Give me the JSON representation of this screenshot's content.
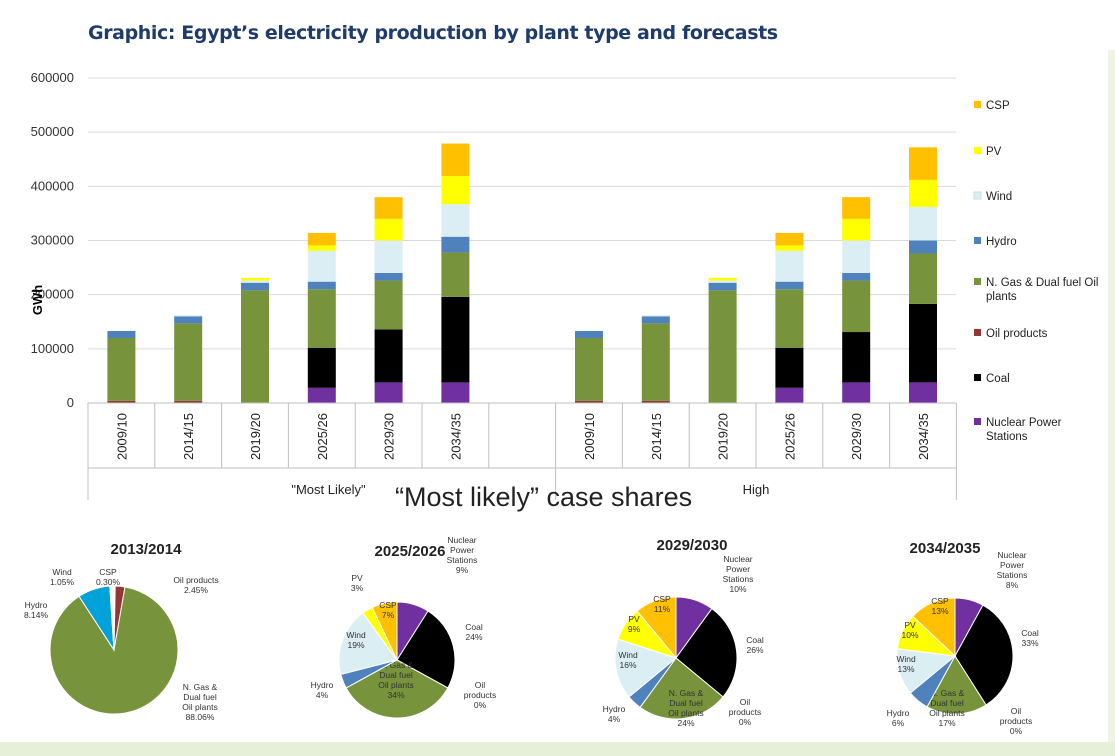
{
  "title": "Graphic: Egypt’s electricity production by plant type and forecasts",
  "pie_heading": "“Most likely” case shares",
  "chart_data": [
    {
      "type": "bar",
      "stacked": true,
      "ylabel": "GWh",
      "ylim": [
        0,
        600000
      ],
      "yticks": [
        0,
        100000,
        200000,
        300000,
        400000,
        500000,
        600000
      ],
      "groups": [
        {
          "label": "\"Most Likely\"",
          "categories": [
            "2009/10",
            "2014/15",
            "2019/20",
            "2025/26",
            "2029/30",
            "2034/35"
          ]
        },
        {
          "label": "High",
          "categories": [
            "2009/10",
            "2014/15",
            "2019/20",
            "2025/26",
            "2029/30",
            "2034/35"
          ]
        }
      ],
      "legend_position": "right",
      "series": [
        {
          "name": "Nuclear Power Stations",
          "color": "#7030a0",
          "values": [
            0,
            0,
            0,
            28000,
            38000,
            38000,
            0,
            0,
            0,
            28000,
            38000,
            38000
          ]
        },
        {
          "name": "Coal",
          "color": "#000000",
          "values": [
            0,
            0,
            0,
            74000,
            98000,
            158000,
            0,
            0,
            0,
            74000,
            93000,
            145000
          ]
        },
        {
          "name": "Oil products",
          "color": "#943634",
          "values": [
            4000,
            4000,
            0,
            0,
            0,
            0,
            4000,
            4000,
            0,
            0,
            0,
            0
          ]
        },
        {
          "name": "N. Gas & Dual fuel Oil plants",
          "color": "#77933c",
          "values": [
            116000,
            143000,
            208000,
            108000,
            90000,
            82000,
            116000,
            143000,
            208000,
            108000,
            95000,
            93000
          ]
        },
        {
          "name": "Hydro",
          "color": "#4f81bd",
          "values": [
            13000,
            13000,
            14000,
            14000,
            14000,
            29000,
            13000,
            13000,
            14000,
            14000,
            14000,
            24000
          ]
        },
        {
          "name": "Wind",
          "color": "#dbeef4",
          "values": [
            0,
            2000,
            4000,
            57000,
            60000,
            60000,
            0,
            2000,
            4000,
            57000,
            60000,
            62000
          ]
        },
        {
          "name": "PV",
          "color": "#ffff00",
          "values": [
            0,
            0,
            5000,
            10000,
            40000,
            52000,
            0,
            0,
            5000,
            10000,
            40000,
            50000
          ]
        },
        {
          "name": "CSP",
          "color": "#ffc000",
          "values": [
            0,
            0,
            0,
            23000,
            40000,
            60000,
            0,
            0,
            0,
            23000,
            40000,
            60000
          ]
        }
      ]
    },
    {
      "type": "pie",
      "title": "2013/2014",
      "slices": [
        {
          "name": "CSP",
          "label": "CSP",
          "pct": "0.30%",
          "value": 0.3,
          "color": "#ffc000"
        },
        {
          "name": "Oil products",
          "label": "Oil products",
          "pct": "2.45%",
          "value": 2.45,
          "color": "#943634"
        },
        {
          "name": "N. Gas & Dual fuel Oil plants",
          "label": "N. Gas & Dual fuel Oil plants",
          "pct": "88.06%",
          "value": 88.06,
          "color": "#77933c"
        },
        {
          "name": "Hydro",
          "label": "Hydro",
          "pct": "8.14%",
          "value": 8.14,
          "color": "#00a2d9"
        },
        {
          "name": "Wind",
          "label": "Wind",
          "pct": "1.05%",
          "value": 1.05,
          "color": "#ffffff"
        }
      ]
    },
    {
      "type": "pie",
      "title": "2025/2026",
      "slices": [
        {
          "name": "Nuclear Power Stations",
          "label": "Nuclear Power Stations",
          "pct": "9%",
          "value": 9,
          "color": "#7030a0"
        },
        {
          "name": "Coal",
          "label": "Coal",
          "pct": "24%",
          "value": 24,
          "color": "#000000"
        },
        {
          "name": "Oil products",
          "label": "Oil products",
          "pct": "0%",
          "value": 0,
          "color": "#943634"
        },
        {
          "name": "N. Gas & Dual fuel Oil plants",
          "label": "N. Gas & Dual fuel Oil plants",
          "pct": "34%",
          "value": 34,
          "color": "#77933c"
        },
        {
          "name": "Hydro",
          "label": "Hydro",
          "pct": "4%",
          "value": 4,
          "color": "#4f81bd"
        },
        {
          "name": "Wind",
          "label": "Wind",
          "pct": "19%",
          "value": 19,
          "color": "#dbeef4"
        },
        {
          "name": "PV",
          "label": "PV",
          "pct": "3%",
          "value": 3,
          "color": "#ffff00"
        },
        {
          "name": "CSP",
          "label": "CSP",
          "pct": "7%",
          "value": 7,
          "color": "#ffc000"
        }
      ]
    },
    {
      "type": "pie",
      "title": "2029/2030",
      "slices": [
        {
          "name": "Nuclear Power Stations",
          "label": "Nuclear Power Stations",
          "pct": "10%",
          "value": 10,
          "color": "#7030a0"
        },
        {
          "name": "Coal",
          "label": "Coal",
          "pct": "26%",
          "value": 26,
          "color": "#000000"
        },
        {
          "name": "Oil products",
          "label": "Oil products",
          "pct": "0%",
          "value": 0,
          "color": "#943634"
        },
        {
          "name": "N. Gas & Dual fuel Oil plants",
          "label": "N. Gas & Dual fuel Oil plants",
          "pct": "24%",
          "value": 24,
          "color": "#77933c"
        },
        {
          "name": "Hydro",
          "label": "Hydro",
          "pct": "4%",
          "value": 4,
          "color": "#4f81bd"
        },
        {
          "name": "Wind",
          "label": "Wind",
          "pct": "16%",
          "value": 16,
          "color": "#dbeef4"
        },
        {
          "name": "PV",
          "label": "PV",
          "pct": "9%",
          "value": 9,
          "color": "#ffff00"
        },
        {
          "name": "CSP",
          "label": "CSP",
          "pct": "11%",
          "value": 11,
          "color": "#ffc000"
        }
      ]
    },
    {
      "type": "pie",
      "title": "2034/2035",
      "slices": [
        {
          "name": "Nuclear Power Stations",
          "label": "Nuclear Power Stations",
          "pct": "8%",
          "value": 8,
          "color": "#7030a0"
        },
        {
          "name": "Coal",
          "label": "Coal",
          "pct": "33%",
          "value": 33,
          "color": "#000000"
        },
        {
          "name": "Oil products",
          "label": "Oil products",
          "pct": "0%",
          "value": 0,
          "color": "#943634"
        },
        {
          "name": "N. Gas & Dual fuel Oil plants",
          "label": "N. Gas & Dual fuel Oil plants",
          "pct": "17%",
          "value": 17,
          "color": "#77933c"
        },
        {
          "name": "Hydro",
          "label": "Hydro",
          "pct": "6%",
          "value": 6,
          "color": "#4f81bd"
        },
        {
          "name": "Wind",
          "label": "Wind",
          "pct": "13%",
          "value": 13,
          "color": "#dbeef4"
        },
        {
          "name": "PV",
          "label": "PV",
          "pct": "10%",
          "value": 10,
          "color": "#ffff00"
        },
        {
          "name": "CSP",
          "label": "CSP",
          "pct": "13%",
          "value": 13,
          "color": "#ffc000"
        }
      ]
    }
  ]
}
